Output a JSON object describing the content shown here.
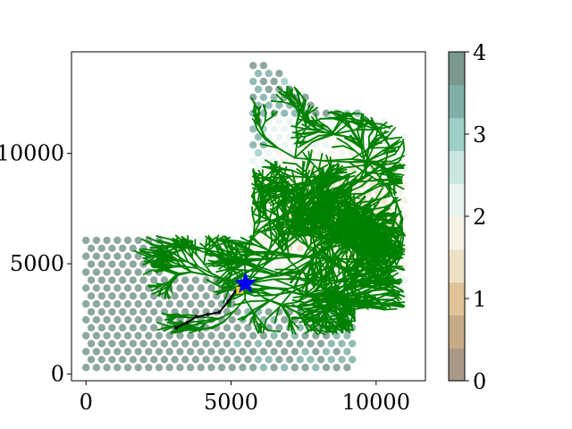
{
  "chart_data": {
    "type": "scatter",
    "title": "",
    "xlabel": "",
    "ylabel": "",
    "xlim": [
      -500,
      11700
    ],
    "ylim": [
      -300,
      14600
    ],
    "xticks": [
      0,
      5000,
      10000
    ],
    "yticks": [
      0,
      5000,
      10000
    ],
    "xtick_labels": [
      "0",
      "5000",
      "10000"
    ],
    "ytick_labels": [
      "0",
      "5000",
      "10000"
    ],
    "grid": false,
    "colorbar": {
      "range": [
        0,
        4
      ],
      "ticks": [
        0,
        1,
        2,
        3,
        4
      ],
      "tick_labels": [
        "0",
        "1",
        "2",
        "3",
        "4"
      ],
      "levels": 10,
      "colors": [
        "#a89a86",
        "#c6ab86",
        "#dfc298",
        "#ede1c4",
        "#f7f2e6",
        "#e9f4f1",
        "#c9e7e0",
        "#9ccfc7",
        "#7fb0a8",
        "#7a988e"
      ]
    },
    "grid_points": {
      "spacing": 360,
      "regions": [
        {
          "name": "lower-left block",
          "x_range": [
            0,
            5200
          ],
          "y_range": [
            300,
            6300
          ],
          "value_range": [
            3.4,
            4.0
          ]
        },
        {
          "name": "bottom strip",
          "x_range": [
            5200,
            9300
          ],
          "y_range": [
            1600,
            2900
          ],
          "value_range": [
            3.0,
            4.0
          ]
        },
        {
          "name": "upper wedge",
          "x_range": [
            5700,
            8500
          ],
          "y_range": [
            10000,
            14000
          ],
          "value_range": [
            2.6,
            4.0
          ]
        },
        {
          "name": "central region",
          "x_range": [
            2700,
            11000
          ],
          "y_range": [
            2900,
            11500
          ],
          "value_range": [
            0.6,
            2.2
          ]
        }
      ]
    },
    "path": {
      "color": "#000000",
      "points": [
        [
          3100,
          2100
        ],
        [
          3500,
          2350
        ],
        [
          3800,
          2600
        ],
        [
          4200,
          2700
        ],
        [
          4600,
          2800
        ],
        [
          4900,
          3300
        ],
        [
          5150,
          3750
        ],
        [
          5350,
          4100
        ]
      ]
    },
    "goal_marker": {
      "shape": "star",
      "color": "#0000ff",
      "x": 5500,
      "y": 4100
    },
    "start_marker": {
      "shape": "square",
      "color": "#e8cf1c",
      "x": 5300,
      "y": 3800
    },
    "tree": {
      "color": "#008000",
      "root": [
        5500,
        4100
      ]
    }
  }
}
